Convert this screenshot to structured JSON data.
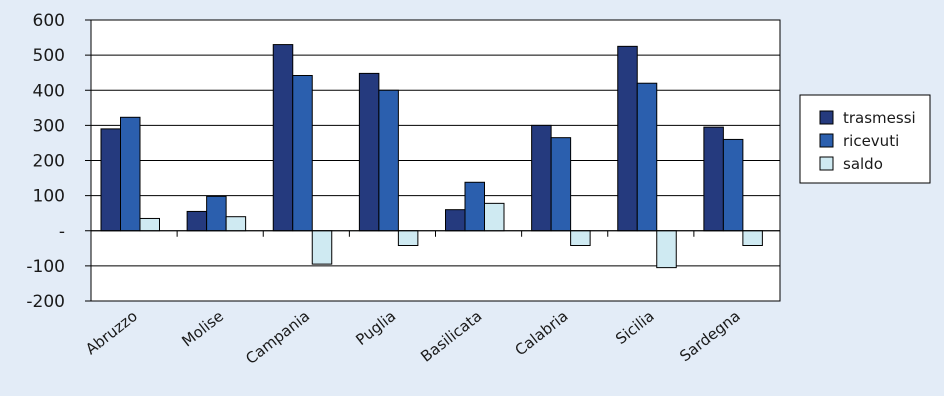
{
  "chart_data": {
    "type": "bar",
    "categories": [
      "Abruzzo",
      "Molise",
      "Campania",
      "Puglia",
      "Basilicata",
      "Calabria",
      "Sicilia",
      "Sardegna"
    ],
    "series": [
      {
        "name": "trasmessi",
        "color": "#253a7e",
        "values": [
          290,
          55,
          530,
          448,
          60,
          300,
          525,
          295
        ]
      },
      {
        "name": "ricevuti",
        "color": "#2b5fae",
        "values": [
          323,
          98,
          442,
          400,
          138,
          265,
          420,
          260
        ]
      },
      {
        "name": "saldo",
        "color": "#cfeaf2",
        "values": [
          35,
          40,
          -95,
          -42,
          78,
          -42,
          -105,
          -42
        ]
      }
    ],
    "ylim": [
      -200,
      600
    ],
    "yticks": [
      600,
      500,
      400,
      300,
      200,
      100,
      0,
      -100,
      -200
    ],
    "ytick_labels": [
      "600",
      "500",
      "400",
      "300",
      "200",
      "100",
      "-",
      "-100",
      "-200"
    ],
    "grid": true,
    "legend": "right",
    "title": "",
    "xlabel": "",
    "ylabel": ""
  }
}
